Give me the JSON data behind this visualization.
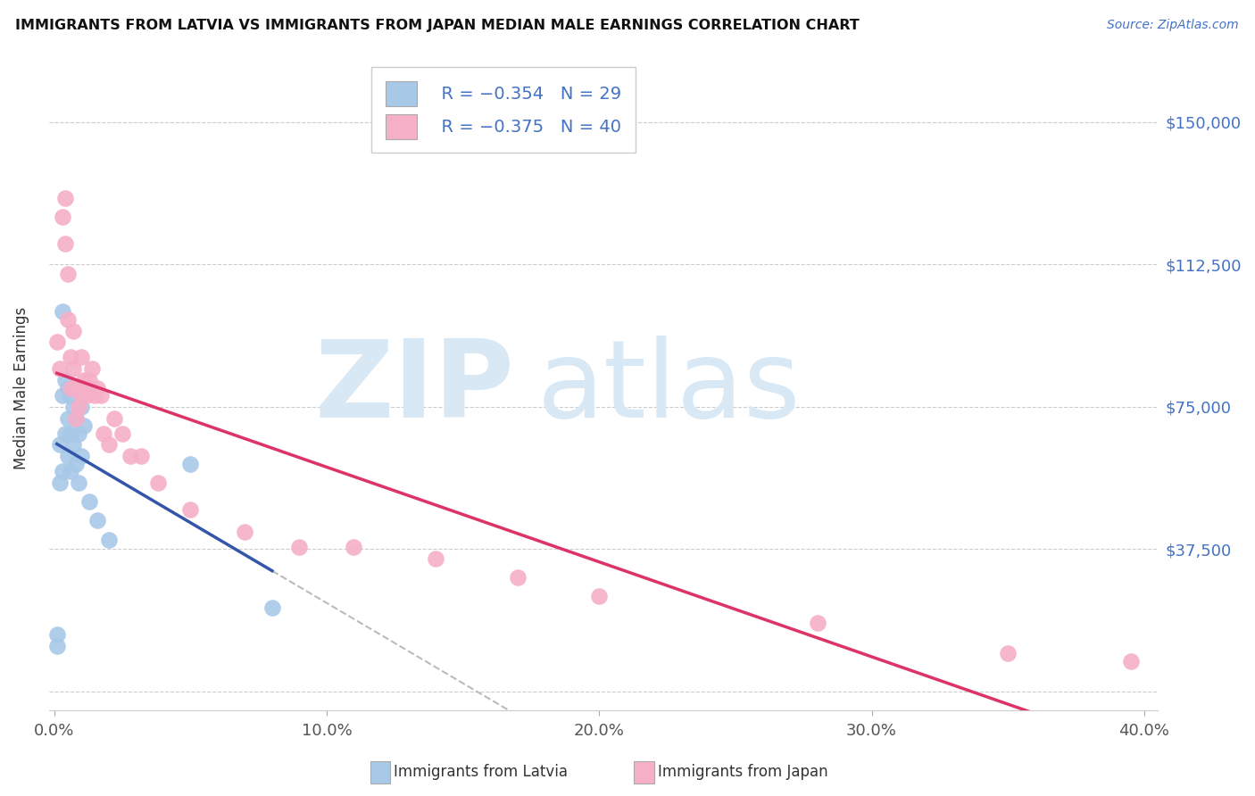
{
  "title": "IMMIGRANTS FROM LATVIA VS IMMIGRANTS FROM JAPAN MEDIAN MALE EARNINGS CORRELATION CHART",
  "source": "Source: ZipAtlas.com",
  "ylabel": "Median Male Earnings",
  "xlim": [
    -0.002,
    0.405
  ],
  "ylim": [
    -5000,
    165000
  ],
  "yticks": [
    0,
    37500,
    75000,
    112500,
    150000
  ],
  "ytick_labels": [
    "",
    "$37,500",
    "$75,000",
    "$112,500",
    "$150,000"
  ],
  "xticks": [
    0.0,
    0.1,
    0.2,
    0.3,
    0.4
  ],
  "xtick_labels": [
    "0.0%",
    "10.0%",
    "20.0%",
    "30.0%",
    "40.0%"
  ],
  "color_latvia": "#a8c8e8",
  "color_japan": "#f5b0c8",
  "line_color_latvia": "#3355aa",
  "line_color_japan": "#dd3366",
  "bg_color": "#ffffff",
  "latvia_x": [
    0.001,
    0.001,
    0.002,
    0.002,
    0.003,
    0.003,
    0.003,
    0.004,
    0.004,
    0.005,
    0.005,
    0.005,
    0.006,
    0.006,
    0.006,
    0.007,
    0.007,
    0.008,
    0.008,
    0.009,
    0.009,
    0.01,
    0.01,
    0.011,
    0.013,
    0.016,
    0.02,
    0.05,
    0.08
  ],
  "latvia_y": [
    15000,
    12000,
    65000,
    55000,
    100000,
    78000,
    58000,
    82000,
    68000,
    80000,
    72000,
    62000,
    78000,
    68000,
    58000,
    75000,
    65000,
    72000,
    60000,
    68000,
    55000,
    75000,
    62000,
    70000,
    50000,
    45000,
    40000,
    60000,
    22000
  ],
  "japan_x": [
    0.001,
    0.002,
    0.003,
    0.004,
    0.004,
    0.005,
    0.005,
    0.006,
    0.006,
    0.007,
    0.007,
    0.008,
    0.008,
    0.009,
    0.01,
    0.01,
    0.011,
    0.012,
    0.013,
    0.014,
    0.015,
    0.016,
    0.017,
    0.018,
    0.02,
    0.022,
    0.025,
    0.028,
    0.032,
    0.038,
    0.05,
    0.07,
    0.09,
    0.11,
    0.14,
    0.17,
    0.2,
    0.28,
    0.35,
    0.395
  ],
  "japan_y": [
    92000,
    85000,
    125000,
    130000,
    118000,
    110000,
    98000,
    88000,
    80000,
    95000,
    85000,
    80000,
    72000,
    75000,
    88000,
    78000,
    82000,
    78000,
    82000,
    85000,
    78000,
    80000,
    78000,
    68000,
    65000,
    72000,
    68000,
    62000,
    62000,
    55000,
    48000,
    42000,
    38000,
    38000,
    35000,
    30000,
    25000,
    18000,
    10000,
    8000
  ]
}
